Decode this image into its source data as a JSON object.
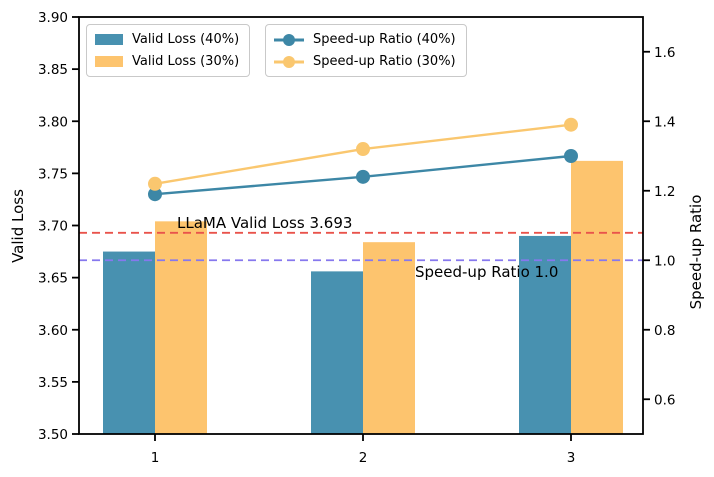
{
  "chart_data": {
    "type": "bar+line",
    "title": "",
    "categories": [
      "1",
      "2",
      "3"
    ],
    "grid": false,
    "legend_position": "upper left, two boxes",
    "left_axis": {
      "label": "Valid Loss",
      "min": 3.5,
      "max": 3.9,
      "ticks": [
        "3.50",
        "3.55",
        "3.60",
        "3.65",
        "3.70",
        "3.75",
        "3.80",
        "3.85",
        "3.90"
      ]
    },
    "right_axis": {
      "label": "Speed-up Ratio",
      "min": 0.5,
      "max": 1.7,
      "ticks": [
        "0.6",
        "0.8",
        "1.0",
        "1.2",
        "1.4",
        "1.6"
      ]
    },
    "bar_series": [
      {
        "name": "Valid Loss (40%)",
        "color": "#4891B0",
        "values": [
          3.675,
          3.656,
          3.69
        ]
      },
      {
        "name": "Valid Loss (30%)",
        "color": "#FDC46E",
        "values": [
          3.704,
          3.684,
          3.762
        ]
      }
    ],
    "line_series": [
      {
        "name": "Speed-up Ratio (40%)",
        "color": "#3D87A6",
        "values": [
          1.19,
          1.24,
          1.3
        ]
      },
      {
        "name": "Speed-up Ratio (30%)",
        "color": "#FAC76F",
        "values": [
          1.22,
          1.32,
          1.39
        ]
      }
    ],
    "reference_lines": [
      {
        "label": "LLaMA Valid Loss 3.693",
        "value": 3.693,
        "axis": "left",
        "color": "#E9534B"
      },
      {
        "label": "Speed-up Ratio 1.0",
        "value": 1.0,
        "axis": "right",
        "color": "#8678EE"
      }
    ]
  }
}
